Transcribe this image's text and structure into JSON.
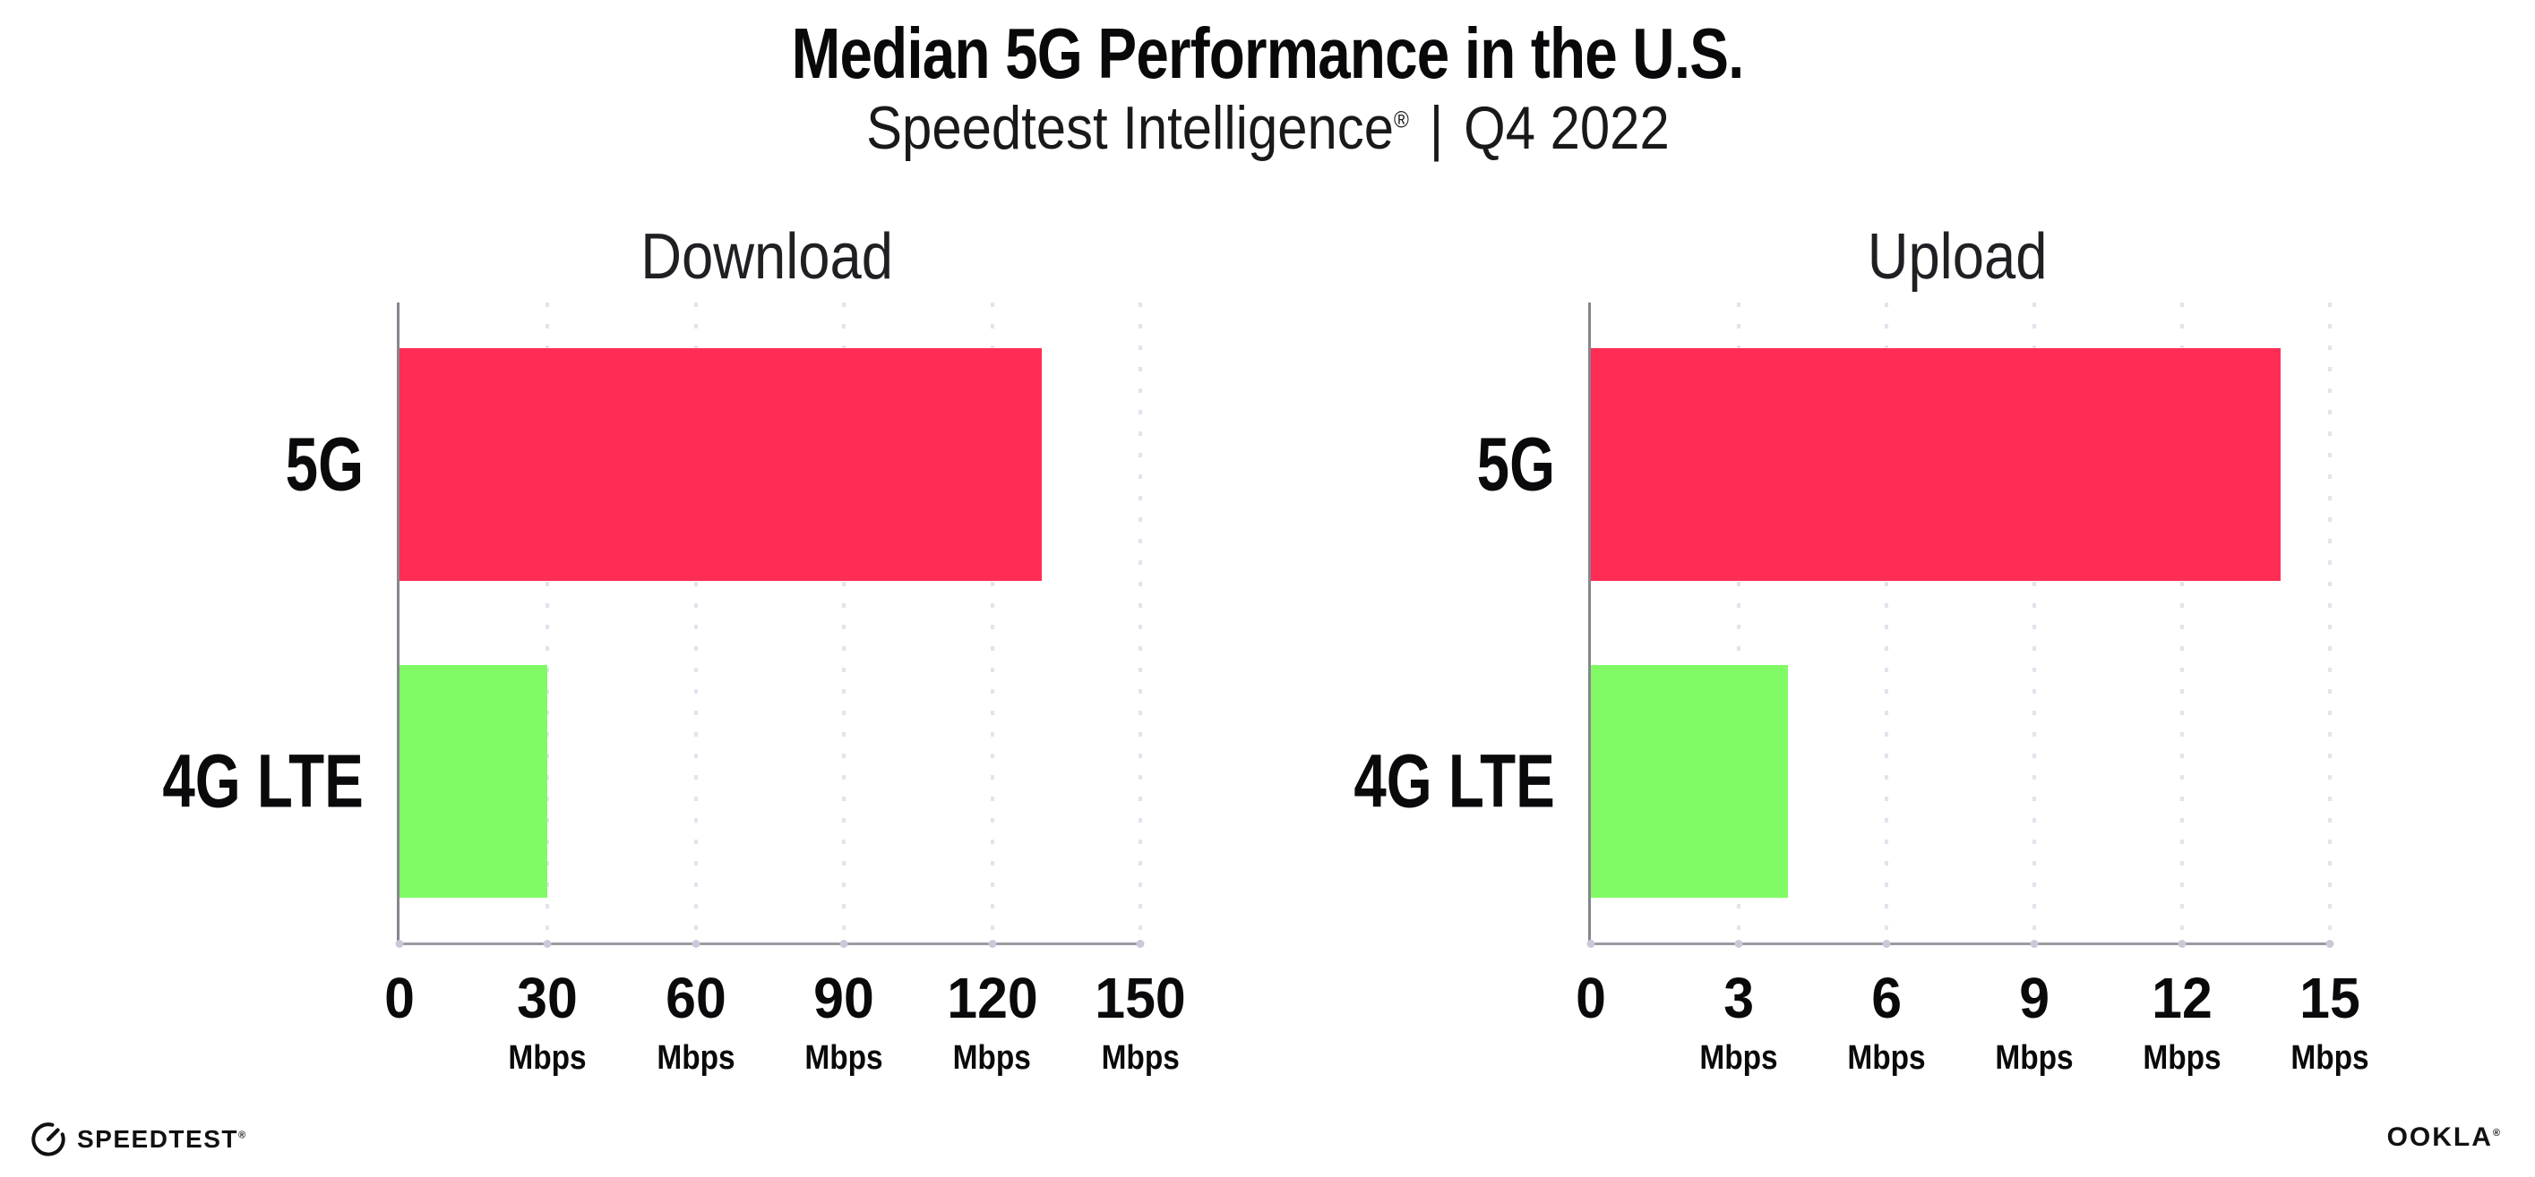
{
  "header": {
    "title": "Median 5G Performance in the U.S.",
    "subtitle_brand": "Speedtest Intelligence",
    "subtitle_reg": "®",
    "subtitle_sep": "|",
    "subtitle_period": "Q4 2022"
  },
  "chart_data": [
    {
      "type": "bar",
      "orientation": "horizontal",
      "title": "Download",
      "categories": [
        "5G",
        "4G LTE"
      ],
      "values": [
        130,
        30
      ],
      "value_unit": "Mbps",
      "xlim": [
        0,
        150
      ],
      "xticks": [
        0,
        30,
        60,
        90,
        120,
        150
      ],
      "tick_unit_label": "Mbps",
      "grid": "dotted-vertical",
      "legend": "none"
    },
    {
      "type": "bar",
      "orientation": "horizontal",
      "title": "Upload",
      "categories": [
        "5G",
        "4G LTE"
      ],
      "values": [
        14,
        4
      ],
      "value_unit": "Mbps",
      "xlim": [
        0,
        15
      ],
      "xticks": [
        0,
        3,
        6,
        9,
        12,
        15
      ],
      "tick_unit_label": "Mbps",
      "grid": "dotted-vertical",
      "legend": "none"
    }
  ],
  "colors": {
    "bar_5g": "#FF2D55",
    "bar_4g_lte": "#80FB66",
    "axis": "#9A9AA2",
    "gridline_dot": "#E3E3EE",
    "axis_tick_dot": "#C9C9DA",
    "text": "#0A0A0C"
  },
  "footer": {
    "speedtest_label": "SPEEDTEST",
    "speedtest_reg": "®",
    "ookla_label": "OOKLA",
    "ookla_reg": "®"
  }
}
